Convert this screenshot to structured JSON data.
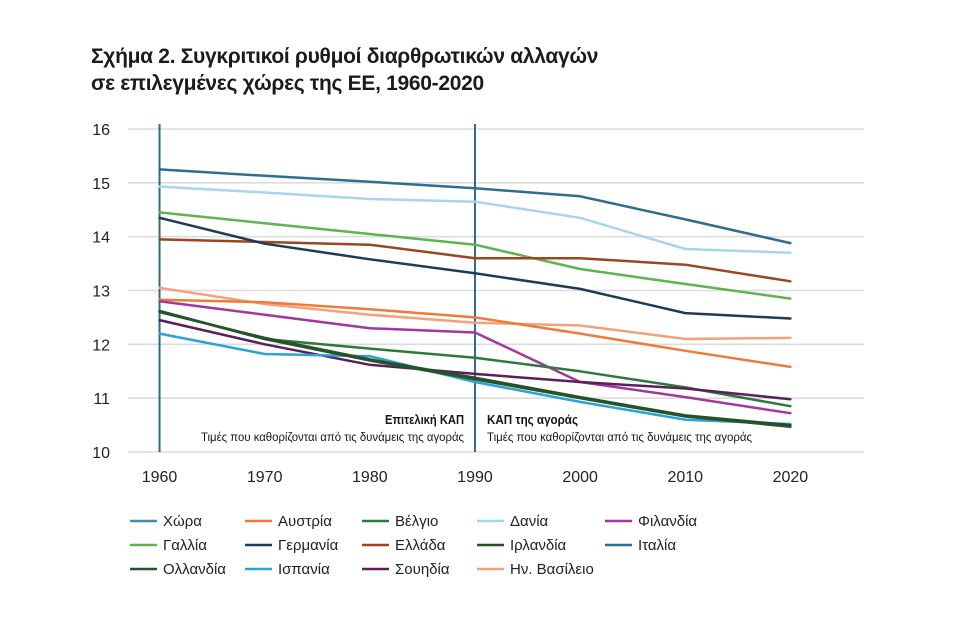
{
  "chart_data": {
    "type": "line",
    "title": [
      "Σχήμα 2. Συγκριτικοί ρυθμοί διαρθρωτικών αλλαγών",
      "σε επιλεγμένες χώρες της ΕΕ, 1960-2020"
    ],
    "xlabel": "",
    "ylabel": "",
    "x": [
      1960,
      1970,
      1980,
      1990,
      2000,
      2010,
      2020
    ],
    "x_tick_labels": [
      "1960",
      "1970",
      "1980",
      "1990",
      "2000",
      "2010",
      "2020"
    ],
    "y_tick_labels": [
      "10",
      "11",
      "12",
      "13",
      "14",
      "15",
      "16"
    ],
    "xlim": [
      1957,
      2027
    ],
    "ylim": [
      10,
      16
    ],
    "grid": "horizontal",
    "legend_position": "bottom",
    "reference_lines_x": [
      1960,
      1990
    ],
    "annotations": [
      {
        "heading": "Επιτελική ΚΑΠ",
        "text": "Τιμές που καθορίζονται από τις δυνάμεις της αγοράς"
      },
      {
        "heading": "ΚΑΠ της αγοράς",
        "text": "Τιμές που καθορίζονται από τις δυνάμεις της αγοράς"
      }
    ],
    "legend": [
      {
        "label": "Χώρα",
        "color": "#4a8aa7"
      },
      {
        "label": "Αυστρία",
        "color": "#ef7b3b"
      },
      {
        "label": "Βέλγιο",
        "color": "#2e7a3a"
      },
      {
        "label": "Δανία",
        "color": "#a8d5ea"
      },
      {
        "label": "Φιλανδία",
        "color": "#a2379e"
      },
      {
        "label": "Γαλλία",
        "color": "#5fb450"
      },
      {
        "label": "Γερμανία",
        "color": "#1d3d55"
      },
      {
        "label": "Ελλάδα",
        "color": "#9b4522"
      },
      {
        "label": "Ιρλανδία",
        "color": "#2b4f24"
      },
      {
        "label": "Ιταλία",
        "color": "#2e6f8f"
      },
      {
        "label": "Ολλανδία",
        "color": "#23552b"
      },
      {
        "label": "Ισπανία",
        "color": "#2ba2d8"
      },
      {
        "label": "Σουηδία",
        "color": "#5b1f5c"
      },
      {
        "label": "Ην. Βασίλειο",
        "color": "#f3a07d"
      }
    ],
    "series": [
      {
        "name": "Δανία",
        "values": [
          14.93,
          14.82,
          14.7,
          14.65,
          14.35,
          13.77,
          13.7
        ]
      },
      {
        "name": "Ιταλία",
        "values": [
          15.25,
          15.13,
          15.02,
          14.9,
          14.75,
          14.32,
          13.88
        ]
      },
      {
        "name": "Γαλλία",
        "values": [
          14.45,
          14.25,
          14.05,
          13.85,
          13.4,
          13.12,
          12.85
        ]
      },
      {
        "name": "Ελλάδα",
        "values": [
          13.95,
          13.9,
          13.85,
          13.6,
          13.6,
          13.48,
          13.17
        ]
      },
      {
        "name": "Γερμανία",
        "values": [
          14.35,
          13.87,
          13.58,
          13.32,
          13.03,
          12.58,
          12.48
        ]
      },
      {
        "name": "Ην. Βασίλειο",
        "values": [
          13.05,
          12.75,
          12.55,
          12.4,
          12.35,
          12.1,
          12.12
        ]
      },
      {
        "name": "Αυστρία",
        "values": [
          12.83,
          12.78,
          12.65,
          12.5,
          12.2,
          11.88,
          11.58
        ]
      },
      {
        "name": "Φιλανδία",
        "values": [
          12.8,
          12.55,
          12.3,
          12.22,
          11.3,
          11.02,
          10.72
        ]
      },
      {
        "name": "Βέλγιο",
        "values": [
          12.62,
          12.1,
          11.92,
          11.75,
          11.5,
          11.2,
          10.85
        ]
      },
      {
        "name": "Σουηδία",
        "values": [
          12.45,
          12.0,
          11.62,
          11.45,
          11.3,
          11.18,
          10.98
        ]
      },
      {
        "name": "Ισπανία",
        "values": [
          12.2,
          11.82,
          11.78,
          11.3,
          10.93,
          10.6,
          10.52
        ]
      },
      {
        "name": "Ιρλανδία",
        "values": [
          12.6,
          12.12,
          11.72,
          11.38,
          11.02,
          10.68,
          10.5
        ]
      },
      {
        "name": "Ολλανδία",
        "values": [
          12.62,
          12.1,
          11.7,
          11.35,
          11.0,
          10.66,
          10.47
        ]
      }
    ]
  }
}
